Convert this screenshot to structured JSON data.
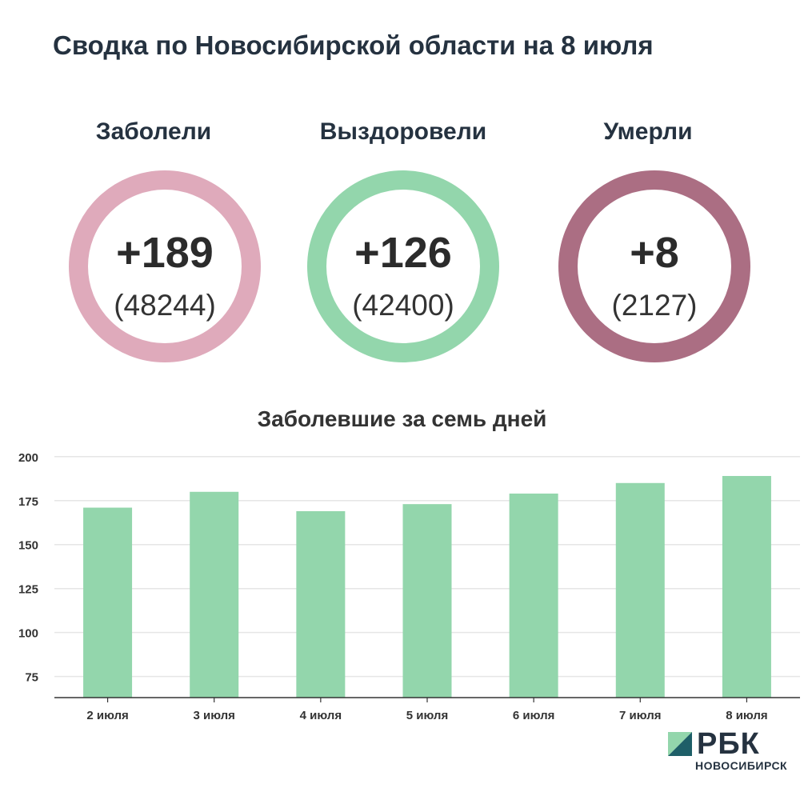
{
  "title": "Сводка по Новосибирской области на 8 июля",
  "stats": [
    {
      "label": "Заболели",
      "delta": "+189",
      "total": "(48244)",
      "color": "#dfaabb"
    },
    {
      "label": "Выздоровели",
      "delta": "+126",
      "total": "(42400)",
      "color": "#93d6ac"
    },
    {
      "label": "Умерли",
      "delta": "+8",
      "total": "(2127)",
      "color": "#ab6e83"
    }
  ],
  "chart_title": "Заболевшие за семь дней",
  "chart_data": {
    "type": "bar",
    "title": "Заболевшие за семь дней",
    "categories": [
      "2 июля",
      "3 июля",
      "4 июля",
      "5 июля",
      "6 июля",
      "7 июля",
      "8 июля"
    ],
    "values": [
      171,
      180,
      169,
      173,
      179,
      185,
      189
    ],
    "ylim": [
      63,
      204
    ],
    "yticks": [
      75,
      100,
      125,
      150,
      175,
      200
    ],
    "grid": true,
    "bar_color": "#93d6ac"
  },
  "logo": {
    "name": "РБК",
    "subtitle": "НОВОСИБИРСК"
  }
}
